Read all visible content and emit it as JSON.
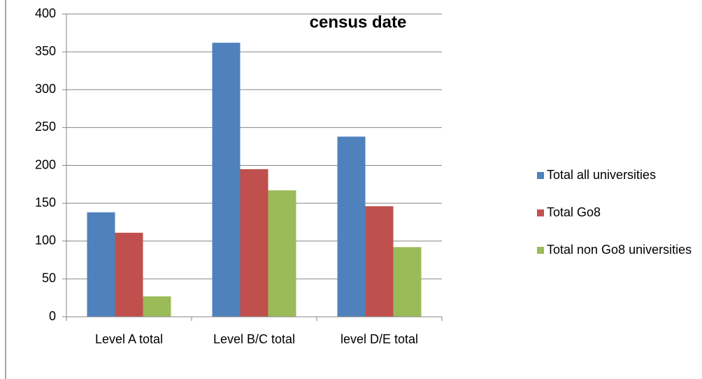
{
  "chart_data": {
    "type": "bar",
    "title": "census date",
    "categories": [
      "Level A total",
      "Level B/C total",
      "level D/E total"
    ],
    "series": [
      {
        "name": "Total all universities",
        "color": "#4f81bd",
        "values": [
          138,
          362,
          238
        ]
      },
      {
        "name": "Total Go8",
        "color": "#c0504d",
        "values": [
          111,
          195,
          146
        ]
      },
      {
        "name": "Total non Go8 universities",
        "color": "#9bbb59",
        "values": [
          27,
          167,
          92
        ]
      }
    ],
    "ylim": [
      0,
      400
    ],
    "yticks": [
      0,
      50,
      100,
      150,
      200,
      250,
      300,
      350,
      400
    ],
    "grid": true,
    "legend": "right"
  }
}
